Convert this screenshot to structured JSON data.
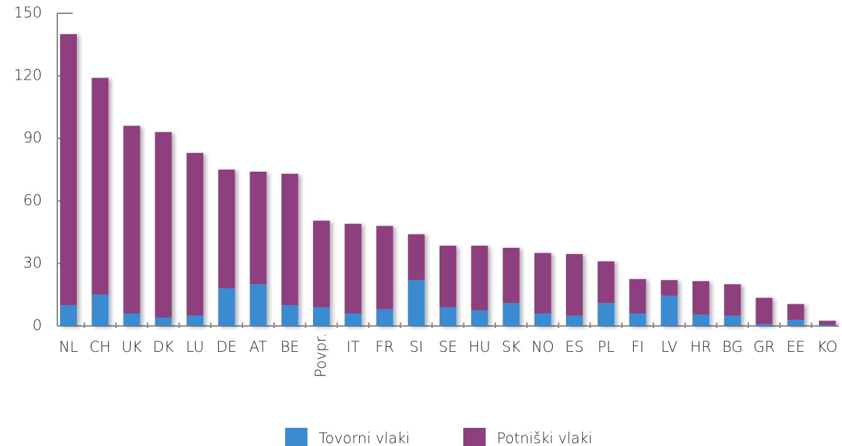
{
  "chart_data": {
    "type": "stacked_bar",
    "categories": [
      "NL",
      "CH",
      "UK",
      "DK",
      "LU",
      "DE",
      "AT",
      "BE",
      "Povpr.",
      "IT",
      "FR",
      "SI",
      "SE",
      "HU",
      "SK",
      "NO",
      "ES",
      "PL",
      "FI",
      "LV",
      "HR",
      "BG",
      "GR",
      "EE",
      "KO"
    ],
    "series": [
      {
        "name": "Tovorni vlaki",
        "color": "#3a8bd0",
        "values": [
          10,
          15,
          6,
          4,
          5,
          18,
          20,
          10,
          9,
          6,
          8,
          22,
          9,
          7.5,
          11,
          6,
          5,
          11,
          6,
          14.5,
          5.5,
          5,
          1,
          3,
          0.5
        ]
      },
      {
        "name": "Potniški vlaki",
        "color": "#8e3f7e",
        "values": [
          130,
          104,
          90,
          89,
          78,
          57,
          54,
          63,
          41.5,
          43,
          40,
          22,
          29.5,
          31,
          26.5,
          29,
          29.5,
          20,
          16.5,
          7.5,
          16,
          15,
          12.5,
          7.5,
          2
        ]
      }
    ],
    "ylim": [
      0,
      150
    ],
    "yticks": [
      0,
      30,
      60,
      90,
      120,
      150
    ],
    "grid": false,
    "legend": "bottom"
  }
}
